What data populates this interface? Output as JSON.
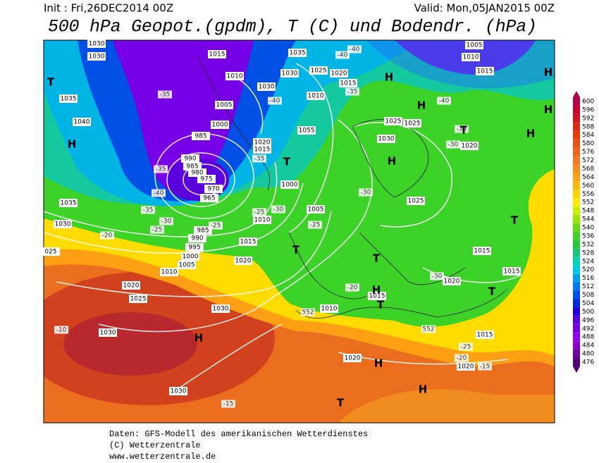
{
  "header": {
    "init": "Init : Fri,26DEC2014 00Z",
    "valid": "Valid: Mon,05JAN2015 00Z",
    "title": "500 hPa Geopot.(gpdm), T (C) und Bodendr. (hPa)"
  },
  "footer": {
    "line1": "Daten: GFS-Modell des amerikanischen Wetterdienstes",
    "line2": "(C) Wetterzentrale",
    "line3": "www.wetterzentrale.de"
  },
  "colorbar": {
    "ticks": [
      600,
      596,
      592,
      588,
      584,
      580,
      576,
      572,
      568,
      564,
      560,
      556,
      552,
      548,
      544,
      540,
      536,
      532,
      528,
      524,
      520,
      516,
      512,
      508,
      504,
      500,
      496,
      492,
      488,
      484,
      480,
      476
    ],
    "colors": [
      "#b4004b",
      "#c80032",
      "#d2141e",
      "#dc2814",
      "#e63c0a",
      "#eb5014",
      "#f0641e",
      "#f57828",
      "#fa8c1e",
      "#ffa014",
      "#ffb90a",
      "#ffd200",
      "#ffeb00",
      "#c8f000",
      "#96e600",
      "#64dc14",
      "#3cd228",
      "#28c83c",
      "#14c878",
      "#00d2b4",
      "#00c8e6",
      "#00a0f0",
      "#0078f0",
      "#0050e6",
      "#0028dc",
      "#1e00dc",
      "#5a00dc",
      "#7800e6",
      "#9600f0",
      "#8c00c8",
      "#6e00a0",
      "#500078"
    ]
  },
  "map": {
    "isobar_labels": [
      "1030",
      "1030",
      "1015",
      "1035",
      "1025",
      "1020",
      "1015",
      "1010",
      "1030",
      "1030",
      "1005",
      "1010",
      "1000",
      "985",
      "990",
      "985",
      "980",
      "975",
      "970",
      "965",
      "1020",
      "1015",
      "1000",
      "1005",
      "1010",
      "985",
      "990",
      "995",
      "1000",
      "1005",
      "1010",
      "1015",
      "1020",
      "1020",
      "1025",
      "1030",
      "1030",
      "1030",
      "1035",
      "1040",
      "1035",
      "1030",
      "025",
      "1025",
      "1025",
      "1030",
      "1025",
      "1015",
      "1015",
      "1020",
      "1015",
      "1010",
      "1015",
      "1020",
      "1020",
      "1005",
      "1010",
      "1015",
      "1020",
      "1055"
    ],
    "pressure_centers": [
      "T",
      "H",
      "H",
      "H",
      "H",
      "H",
      "H",
      "T",
      "T",
      "T",
      "T",
      "H",
      "T",
      "T",
      "H",
      "H",
      "H",
      "T",
      "T",
      "H"
    ],
    "temperature_labels": [
      "-40",
      "-40",
      "-35",
      "-40",
      "-40",
      "-35",
      "-35",
      "-35",
      "-35",
      "-40",
      "-35",
      "-30",
      "-25",
      "-25",
      "-20",
      "-25",
      "-30",
      "-25",
      "-30",
      "-30",
      "-30",
      "-20",
      "-10",
      "-25",
      "-20",
      "-15",
      "-15",
      "552",
      "552"
    ]
  }
}
